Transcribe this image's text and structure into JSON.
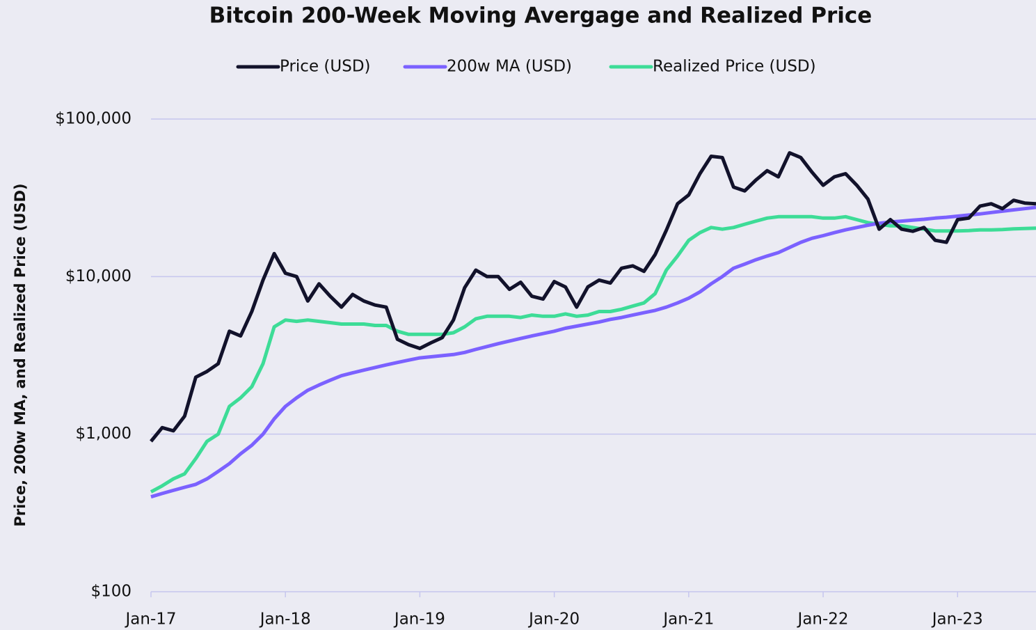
{
  "chart_data": {
    "type": "line",
    "title": "Bitcoin 200-Week Moving Avergage and Realized Price",
    "y_label": "Price, 200w MA, and Realized Price (USD)",
    "log_y": true,
    "grid": true,
    "legend": "top",
    "x": [
      "2017-01",
      "2017-02",
      "2017-03",
      "2017-04",
      "2017-05",
      "2017-06",
      "2017-07",
      "2017-08",
      "2017-09",
      "2017-10",
      "2017-11",
      "2017-12",
      "2018-01",
      "2018-02",
      "2018-03",
      "2018-04",
      "2018-05",
      "2018-06",
      "2018-07",
      "2018-08",
      "2018-09",
      "2018-10",
      "2018-11",
      "2018-12",
      "2019-01",
      "2019-02",
      "2019-03",
      "2019-04",
      "2019-05",
      "2019-06",
      "2019-07",
      "2019-08",
      "2019-09",
      "2019-10",
      "2019-11",
      "2019-12",
      "2020-01",
      "2020-02",
      "2020-03",
      "2020-04",
      "2020-05",
      "2020-06",
      "2020-07",
      "2020-08",
      "2020-09",
      "2020-10",
      "2020-11",
      "2020-12",
      "2021-01",
      "2021-02",
      "2021-03",
      "2021-04",
      "2021-05",
      "2021-06",
      "2021-07",
      "2021-08",
      "2021-09",
      "2021-10",
      "2021-11",
      "2021-12",
      "2022-01",
      "2022-02",
      "2022-03",
      "2022-04",
      "2022-05",
      "2022-06",
      "2022-07",
      "2022-08",
      "2022-09",
      "2022-10",
      "2022-11",
      "2022-12",
      "2023-01",
      "2023-02",
      "2023-03",
      "2023-04",
      "2023-05",
      "2023-06",
      "2023-07",
      "2023-08"
    ],
    "xlim": [
      "2017-01",
      "2023-08"
    ],
    "xticks": [
      {
        "value": "2017-01",
        "label": "Jan-17"
      },
      {
        "value": "2018-01",
        "label": "Jan-18"
      },
      {
        "value": "2019-01",
        "label": "Jan-19"
      },
      {
        "value": "2020-01",
        "label": "Jan-20"
      },
      {
        "value": "2021-01",
        "label": "Jan-21"
      },
      {
        "value": "2022-01",
        "label": "Jan-22"
      },
      {
        "value": "2023-01",
        "label": "Jan-23"
      }
    ],
    "ylim": [
      100,
      100000
    ],
    "yticks": [
      {
        "value": 100,
        "label": "$100"
      },
      {
        "value": 1000,
        "label": "$1,000"
      },
      {
        "value": 10000,
        "label": "$10,000"
      },
      {
        "value": 100000,
        "label": "$100,000"
      }
    ],
    "series": [
      {
        "name": "Price (USD)",
        "color": "#12122b",
        "values": [
          900,
          1100,
          1050,
          1300,
          2300,
          2500,
          2800,
          4500,
          4200,
          6000,
          9500,
          14000,
          10500,
          10000,
          7000,
          9000,
          7500,
          6400,
          7700,
          7000,
          6600,
          6400,
          4000,
          3700,
          3500,
          3800,
          4100,
          5300,
          8500,
          11000,
          10000,
          10000,
          8300,
          9200,
          7500,
          7200,
          9300,
          8600,
          6400,
          8600,
          9500,
          9100,
          11300,
          11700,
          10800,
          13800,
          19700,
          29000,
          33000,
          45000,
          58000,
          57000,
          37000,
          35000,
          41000,
          47000,
          43000,
          61000,
          57000,
          46000,
          38000,
          43000,
          45000,
          38000,
          31000,
          20000,
          23000,
          20000,
          19400,
          20500,
          17000,
          16500,
          23000,
          23500,
          28000,
          29000,
          27000,
          30500,
          29300,
          29000
        ]
      },
      {
        "name": "200w MA (USD)",
        "color": "#7b61ff",
        "values": [
          400,
          420,
          440,
          460,
          480,
          520,
          580,
          650,
          750,
          850,
          1000,
          1250,
          1500,
          1700,
          1900,
          2050,
          2200,
          2350,
          2450,
          2550,
          2650,
          2750,
          2850,
          2950,
          3050,
          3100,
          3150,
          3200,
          3300,
          3450,
          3600,
          3750,
          3900,
          4050,
          4200,
          4350,
          4500,
          4700,
          4850,
          5000,
          5150,
          5350,
          5500,
          5700,
          5900,
          6100,
          6400,
          6800,
          7300,
          8000,
          9000,
          10000,
          11300,
          12000,
          12800,
          13500,
          14200,
          15300,
          16500,
          17500,
          18200,
          19000,
          19800,
          20500,
          21200,
          21800,
          22200,
          22500,
          22800,
          23100,
          23500,
          23800,
          24200,
          24600,
          25000,
          25500,
          26000,
          26500,
          27000,
          27500
        ]
      },
      {
        "name": "Realized Price (USD)",
        "color": "#3ddc97",
        "values": [
          430,
          470,
          520,
          560,
          700,
          900,
          1000,
          1500,
          1700,
          2000,
          2800,
          4800,
          5300,
          5200,
          5300,
          5200,
          5100,
          5000,
          5000,
          5000,
          4900,
          4900,
          4500,
          4300,
          4300,
          4300,
          4300,
          4400,
          4800,
          5400,
          5600,
          5600,
          5600,
          5500,
          5700,
          5600,
          5600,
          5800,
          5600,
          5700,
          6000,
          6000,
          6200,
          6500,
          6800,
          7800,
          11000,
          13500,
          17000,
          19000,
          20500,
          20000,
          20500,
          21500,
          22500,
          23500,
          24000,
          24000,
          24000,
          24000,
          23500,
          23500,
          24000,
          23000,
          22000,
          21500,
          21000,
          21000,
          20500,
          20000,
          19500,
          19500,
          19500,
          19600,
          19800,
          19800,
          19900,
          20100,
          20200,
          20300
        ]
      }
    ]
  }
}
